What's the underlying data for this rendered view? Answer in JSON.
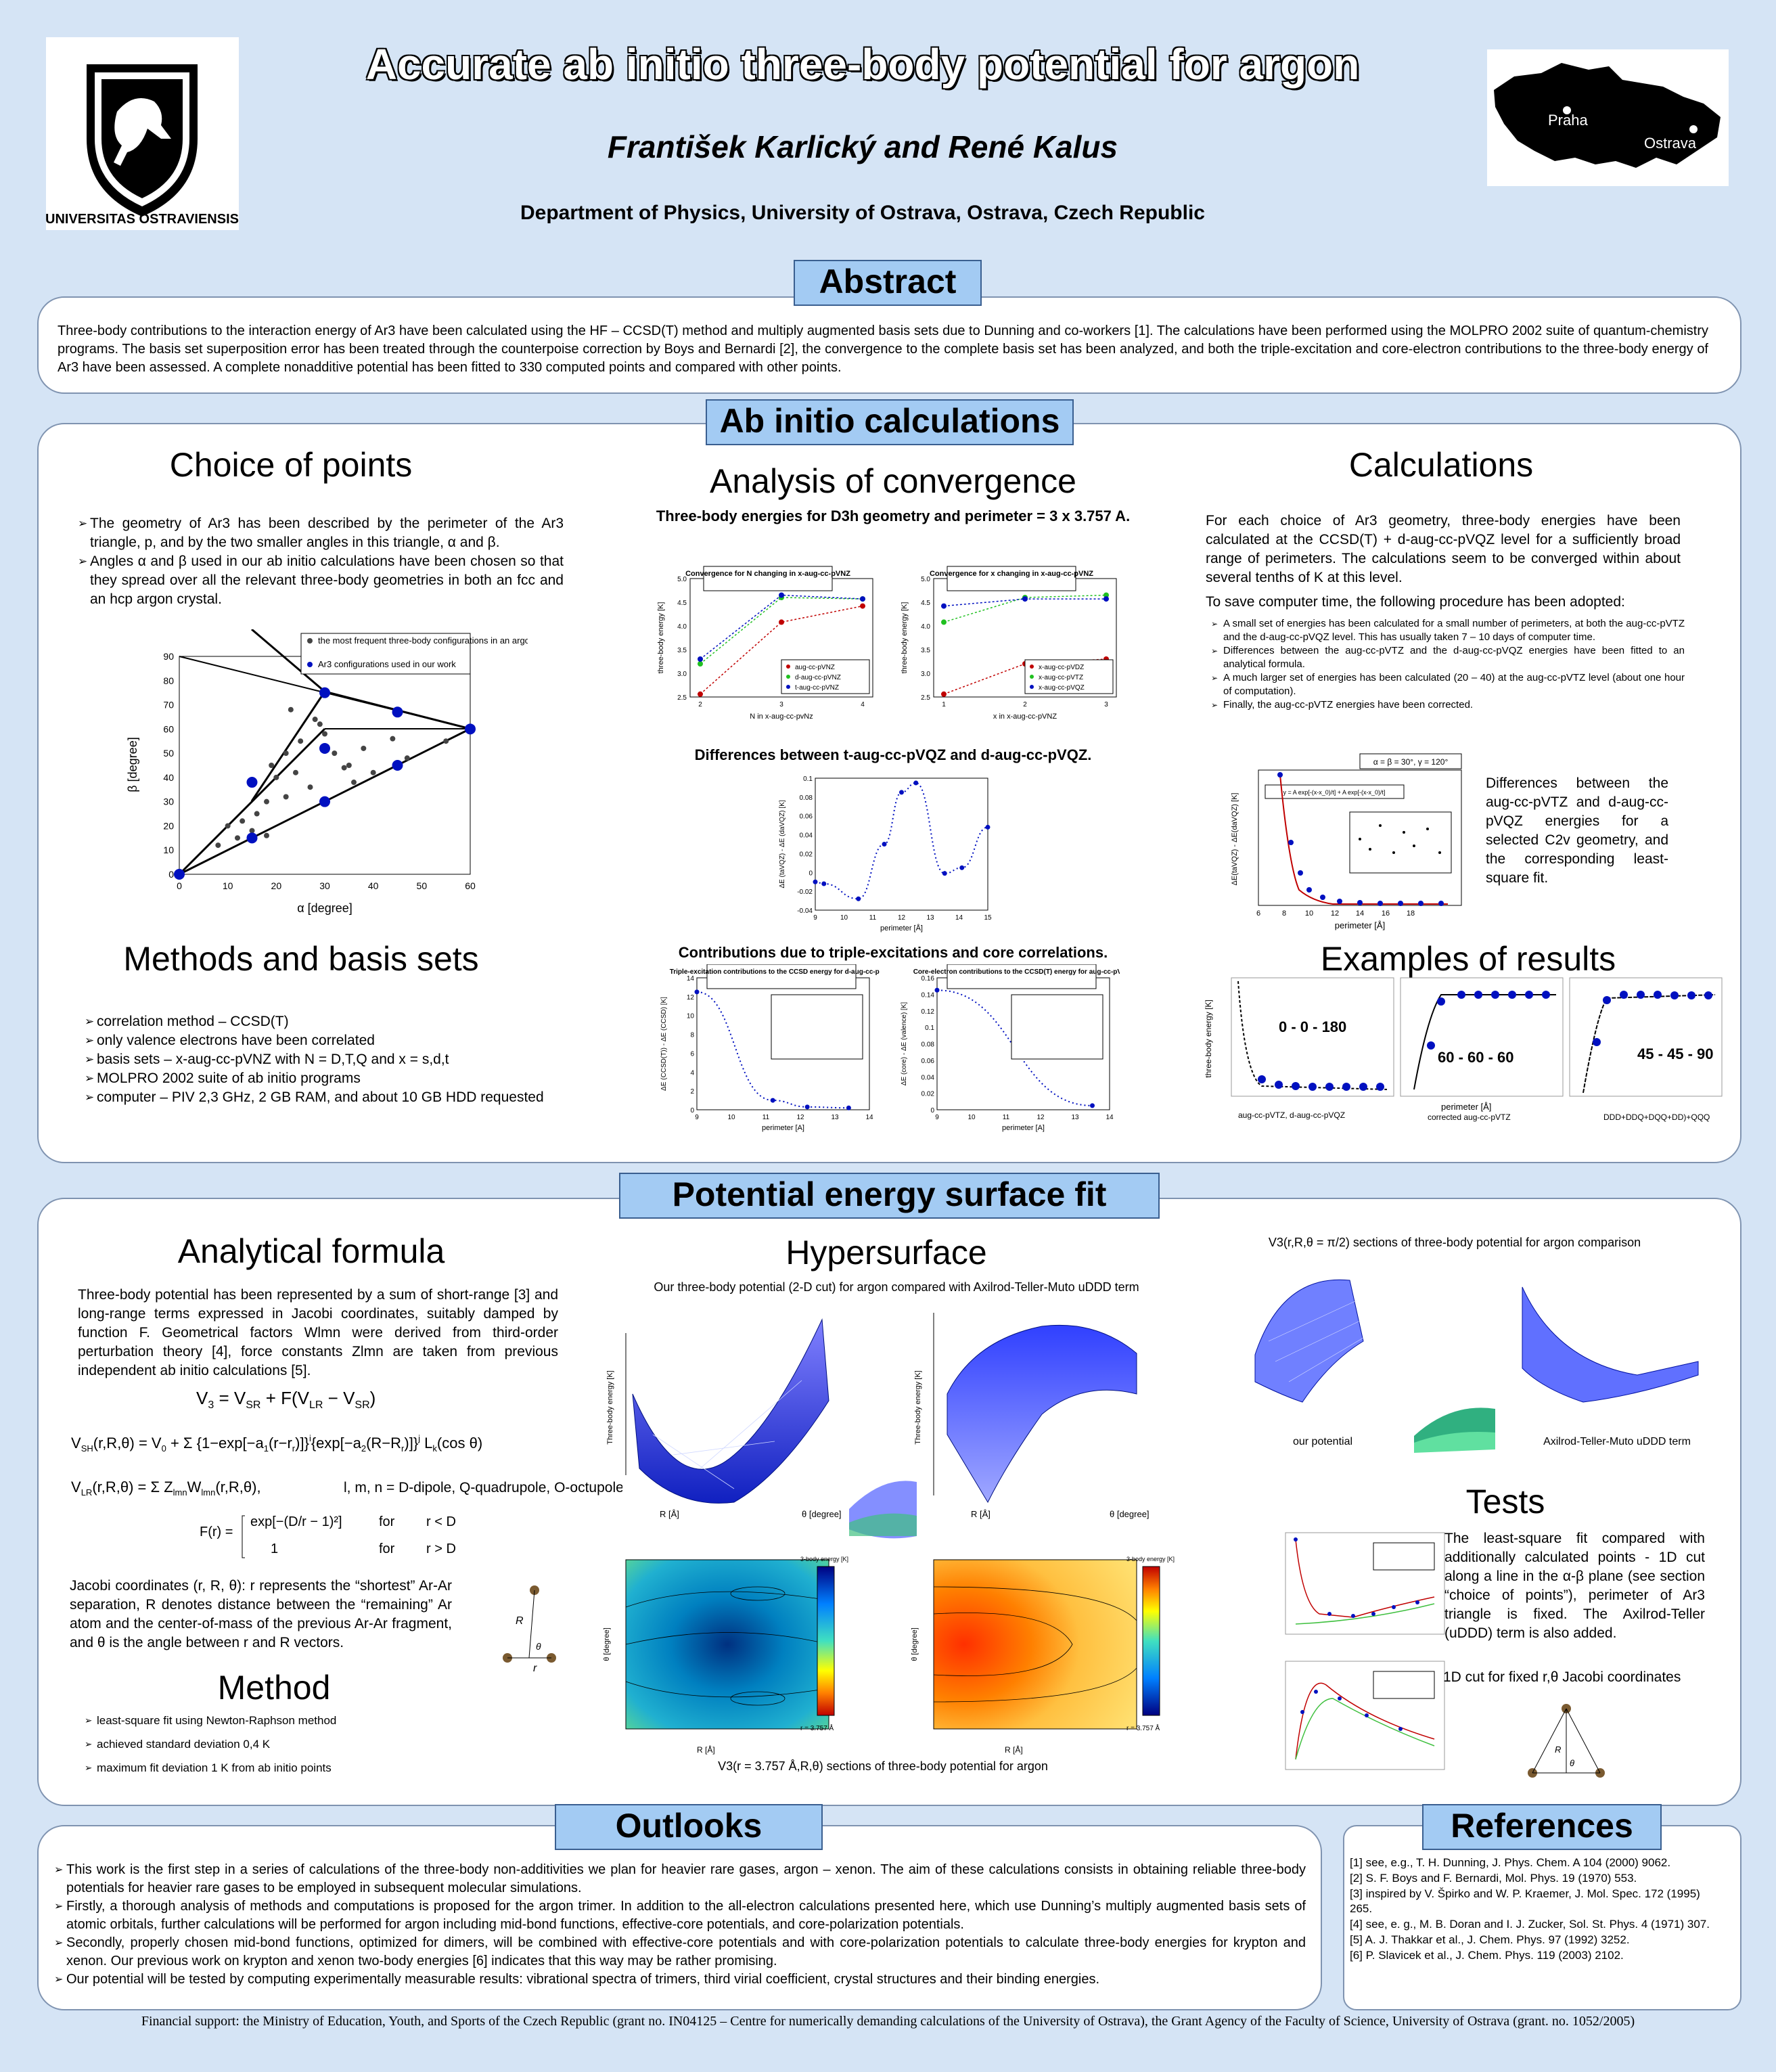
{
  "header": {
    "title": "Accurate ab initio three-body potential for argon",
    "authors": "František Karlický and René Kalus",
    "affiliation": "Department of Physics, University of Ostrava, Ostrava, Czech Republic",
    "logo_text": "UNIVERSITAS OSTRAVIENSIS",
    "map_city1": "Praha",
    "map_city2": "Ostrava"
  },
  "abstract": {
    "heading": "Abstract",
    "text": "Three-body contributions to the interaction energy of Ar3 have been calculated using the HF – CCSD(T) method and multiply augmented basis sets due to Dunning and co-workers [1]. The calculations have been performed using the MOLPRO 2002 suite of quantum-chemistry programs. The basis set superposition error has been treated through the counterpoise correction by Boys and Bernardi [2], the convergence to the complete basis set has been analyzed, and both the triple-excitation and core-electron contributions to the three-body energy of Ar3 have been assessed. A complete nonadditive potential has been fitted to 330 computed points and compared with other points."
  },
  "abinitio": {
    "heading": "Ab initio calculations",
    "choice": {
      "title": "Choice of points",
      "p1": "The geometry of Ar3 has been described by the perimeter of the Ar3 triangle, p, and by the two smaller angles in this triangle, α and β.",
      "p2": "Angles α and β used in our ab initio calculations have been chosen so that they spread over all the relevant three-body geometries in both an fcc and an hcp argon crystal.",
      "legend1": "the most frequent three-body configurations in an argon crystal",
      "legend2": "Ar3 configurations used in our work",
      "xlabel": "α [degree]",
      "ylabel": "β [degree]"
    },
    "methods": {
      "title": "Methods and basis sets",
      "items": [
        "correlation method – CCSD(T)",
        "only valence electrons have been correlated",
        "basis sets – x-aug-cc-pVNZ with N = D,T,Q and x = s,d,t",
        "MOLPRO 2002 suite of ab initio programs",
        "computer – PIV 2,3 GHz, 2 GB RAM, and about 10 GB HDD requested"
      ]
    },
    "convergence": {
      "title": "Analysis of convergence",
      "cap1": "Three-body energies for D3h geometry and perimeter = 3 x 3.757 A.",
      "box1": "Convergence for N changing in x-aug-cc-pVNZ",
      "box2": "Convergence for x changing in x-aug-cc-pVNZ",
      "leg1": [
        "aug-cc-pVNZ",
        "d-aug-cc-pVNZ",
        "t-aug-cc-pVNZ"
      ],
      "leg2": [
        "x-aug-cc-pVDZ",
        "x-aug-cc-pVTZ",
        "x-aug-cc-pVQZ"
      ],
      "xl1": "N in x-aug-cc-pvNz",
      "xl2": "x in x-aug-cc-pVNZ",
      "yl": "three-body energy [K]",
      "cap2": "Differences between t-aug-cc-pVQZ and d-aug-cc-pVQZ.",
      "yl2": "ΔE (taVQZ) - ΔE (daVQZ) [K]",
      "xl3": "perimeter [Å]",
      "cap3": "Contributions due to triple-excitations and core correlations.",
      "box3": "Triple-excitation contributions to the CCSD energy for d-aug-cc-pVQZ",
      "box4": "Core-electron contributions to the CCSD(T) energy for aug-cc-pVTZ",
      "yl3": "ΔE (CCSD(T)) - ΔE (CCSD) [K]",
      "yl4": "ΔE (core) - ΔE (valence) [K]",
      "xl4": "perimeter [A]"
    },
    "calculations": {
      "title": "Calculations",
      "p1": "For each choice of Ar3 geometry, three-body energies have been calculated at the CCSD(T) + d-aug-cc-pVQZ level for a sufficiently broad range of perimeters. The calculations seem to be converged within about several tenths of K at this level.",
      "p2": "To save computer time, the following procedure has been adopted:",
      "items": [
        "A small set of energies has been calculated for a small number of perimeters, at both the aug-cc-pVTZ and the d-aug-cc-pVQZ level. This has usually taken 7 – 10 days of computer time.",
        "Differences between the aug-cc-pVTZ and the d-aug-cc-pVQZ energies have been fitted to an analytical formula.",
        "A much larger set of energies has been calculated (20 – 40) at the aug-cc-pVTZ level (about one hour of computation).",
        "Finally, the aug-cc-pVTZ energies have been corrected."
      ],
      "angles": "α = β = 30°, γ = 120°",
      "fit": "y = A exp[-(x-x_0)/t] + A exp[-(x-x_0)/t]",
      "side": "Differences between the aug-cc-pVTZ and d-aug-cc-pVQZ energies for a selected C2v geometry, and the corresponding least-square fit.",
      "yl": "ΔE(taVQZ) - ΔE(daVQZ) [K]",
      "xl": "perimeter [Å]"
    },
    "examples": {
      "title": "Examples of results",
      "l1": "0 - 0 - 180",
      "l2": "60 - 60 - 60",
      "l3": "45 - 45 - 90",
      "leg1": "aug-cc-pVTZ,   d-aug-cc-pVQZ",
      "leg2": "corrected aug-cc-pVTZ",
      "leg3": "DDD+DDQ+DQQ+DD)+QQQ",
      "yl": "three-body energy [K]",
      "xl": "perimeter [Å]"
    }
  },
  "pes": {
    "heading": "Potential energy surface fit",
    "formula_title": "Analytical formula",
    "formula_text": "Three-body potential has been represented by a sum of short-range [3] and long-range terms expressed in Jacobi coordinates, suitably damped by function F. Geometrical factors Wlmn were derived from third-order perturbation theory [4], force constants Zlmn are taken from previous independent ab initio calculations [5].",
    "eq_lmn": "l, m, n = D-dipole, Q-quadrupole, O-octupole",
    "eq_for1": "for",
    "eq_for2": "for",
    "eq_c1": "r < D",
    "eq_c2": "r > D",
    "jacobi_text": "Jacobi coordinates (r, R, θ): r represents the “shortest” Ar-Ar separation, R denotes distance between the “remaining” Ar atom and the center-of-mass of the previous Ar-Ar fragment, and θ is the angle between r and R vectors.",
    "method_title": "Method",
    "method_items": [
      "least-square fit using Newton-Raphson method",
      "achieved standard deviation 0,4 K",
      "maximum fit deviation 1 K from ab initio points"
    ],
    "hyper_title": "Hypersurface",
    "hyper_cap": "Our three-body potential (2-D cut) for argon compared with Axilrod-Teller-Muto uDDD term",
    "hyper_cap2": "V3(r = 3.757 Å,R,θ) sections of three-body potential for argon",
    "surf_xl": "R [Å]",
    "surf_yl": "θ [degree]",
    "surf_zl": "Three-body energy [K]",
    "cont_yl": "θ [degree]",
    "cont_xl": "R [Å]",
    "cont_r": "r = 3.757 Å",
    "cbar_label": "3-body energy [K]",
    "v3_cap": "V3(r,R,θ = π/2) sections of three-body potential for argon comparison",
    "our_pot": "our potential",
    "atm": "Axilrod-Teller-Muto uDDD term",
    "tests_title": "Tests",
    "tests_text": "The least-square fit compared with additionally calculated points - 1D cut along a line in the α-β plane (see section “choice of points”), perimeter of Ar3 triangle is fixed. The Axilrod-Teller (uDDD) term is also added.",
    "tests_cut": "1D cut for fixed r,θ Jacobi coordinates"
  },
  "outlooks": {
    "heading": "Outlooks",
    "items": [
      "This work is the first step in a series of calculations of the three-body non-additivities we plan for heavier rare gases, argon – xenon. The aim of these calculations consists in obtaining reliable three-body potentials for heavier rare gases to be employed in subsequent molecular simulations.",
      "Firstly, a thorough analysis of methods and computations is proposed for the argon trimer. In addition to the all-electron calculations presented here, which use Dunning’s multiply augmented basis sets of atomic orbitals, further calculations will be performed for argon including mid-bond functions, effective-core potentials, and core-polarization potentials.",
      "Secondly, properly chosen mid-bond functions, optimized for dimers, will be combined with effective-core potentials and with core-polarization potentials to calculate three-body energies for krypton and xenon. Our previous work on krypton and xenon two-body energies [6] indicates that this way may be rather promising.",
      "Our potential will be tested by computing experimentally measurable results: vibrational spectra of trimers, third virial coefficient, crystal structures and their binding energies."
    ]
  },
  "references": {
    "heading": "References",
    "items": [
      "[1]  see, e.g., T. H. Dunning, J. Phys. Chem. A 104 (2000) 9062.",
      "[2]  S. F. Boys and F. Bernardi, Mol. Phys. 19 (1970) 553.",
      "[3]  inspired by V. Špirko and W. P. Kraemer, J. Mol. Spec. 172 (1995) 265.",
      "[4]  see, e. g., M. B. Doran and I. J. Zucker, Sol. St. Phys. 4 (1971) 307.",
      "[5]  A. J. Thakkar et al., J. Chem. Phys. 97 (1992) 3252.",
      "[6]  P. Slavicek et al., J. Chem. Phys. 119 (2003) 2102."
    ]
  },
  "footer": "Financial support: the Ministry of Education, Youth, and Sports of the Czech Republic (grant no. IN04125 – Centre for numerically demanding calculations of the University of Ostrava), the Grant Agency of the Faculty of Science, University of Ostrava (grant. no. 1052/2005)",
  "chart_data": [
    {
      "type": "scatter",
      "xlabel": "α [degree]",
      "ylabel": "β [degree]",
      "xlim": [
        0,
        60
      ],
      "ylim": [
        0,
        90
      ],
      "xticks": [
        0,
        10,
        20,
        30,
        40,
        50,
        60
      ],
      "yticks": [
        0,
        10,
        20,
        30,
        40,
        50,
        60,
        70,
        80,
        90
      ],
      "series": [
        {
          "name": "the most frequent three-body configurations in an argon crystal",
          "points": [
            [
              8,
              12
            ],
            [
              10,
              20
            ],
            [
              12,
              15
            ],
            [
              13,
              22
            ],
            [
              15,
              18
            ],
            [
              16,
              25
            ],
            [
              18,
              30
            ],
            [
              19,
              45
            ],
            [
              20,
              40
            ],
            [
              22,
              32
            ],
            [
              22,
              50
            ],
            [
              23,
              68
            ],
            [
              24,
              42
            ],
            [
              25,
              55
            ],
            [
              27,
              36
            ],
            [
              28,
              64
            ],
            [
              29,
              62
            ],
            [
              30,
              58
            ],
            [
              32,
              50
            ],
            [
              34,
              44
            ],
            [
              35,
              45
            ],
            [
              36,
              38
            ],
            [
              38,
              52
            ],
            [
              40,
              42
            ],
            [
              44,
              56
            ],
            [
              47,
              48
            ],
            [
              55,
              55
            ],
            [
              18,
              16
            ]
          ]
        },
        {
          "name": "Ar3 configurations used in our work",
          "points": [
            [
              0,
              0
            ],
            [
              15,
              15
            ],
            [
              15,
              38
            ],
            [
              30,
              30
            ],
            [
              30,
              52
            ],
            [
              30,
              75
            ],
            [
              45,
              45
            ],
            [
              45,
              67
            ],
            [
              60,
              60
            ]
          ]
        }
      ]
    },
    {
      "type": "line",
      "title": "Convergence for N changing in x-aug-cc-pVNZ",
      "xlabel": "N in x-aug-cc-pvNz",
      "ylabel": "three-body energy [K]",
      "x": [
        2,
        3,
        4
      ],
      "xticks_labels": [
        "2",
        "3",
        "4"
      ],
      "ylim": [
        2.5,
        5.0
      ],
      "series": [
        {
          "name": "aug-cc-pVNZ",
          "values": [
            2.56,
            4.08,
            4.42
          ]
        },
        {
          "name": "d-aug-cc-pVNZ",
          "values": [
            3.2,
            4.6,
            4.57
          ]
        },
        {
          "name": "t-aug-cc-pVNZ",
          "values": [
            3.3,
            4.65,
            4.57
          ]
        }
      ]
    },
    {
      "type": "line",
      "title": "Convergence for x changing in x-aug-cc-pVNZ",
      "xlabel": "x in x-aug-cc-pVNZ",
      "ylabel": "three-body energy [K]",
      "x": [
        1,
        2,
        3
      ],
      "ylim": [
        2.5,
        5.0
      ],
      "series": [
        {
          "name": "x-aug-cc-pVDZ",
          "values": [
            2.56,
            3.2,
            3.3
          ]
        },
        {
          "name": "x-aug-cc-pVTZ",
          "values": [
            4.08,
            4.6,
            4.65
          ]
        },
        {
          "name": "x-aug-cc-pVQZ",
          "values": [
            4.42,
            4.57,
            4.57
          ]
        }
      ]
    },
    {
      "type": "line",
      "title": "Differences between t-aug-cc-pVQZ and d-aug-cc-pVQZ.",
      "xlabel": "perimeter [Å]",
      "ylabel": "ΔE (taVQZ) - ΔE (daVQZ) [K]",
      "xlim": [
        9,
        15
      ],
      "ylim": [
        -0.04,
        0.1
      ],
      "x": [
        9,
        9.3,
        10.5,
        11.4,
        12,
        12.5,
        13.5,
        14.1,
        15
      ],
      "values": [
        -0.01,
        -0.012,
        -0.028,
        0.03,
        0.085,
        0.095,
        -0.001,
        0.005,
        0.048
      ]
    },
    {
      "type": "line",
      "title": "Triple-excitation contributions to the CCSD energy for d-aug-cc-pVQZ",
      "xlabel": "perimeter [A]",
      "ylabel": "ΔE (CCSD(T)) - ΔE (CCSD) [K]",
      "xlim": [
        9,
        14
      ],
      "ylim": [
        0,
        14
      ],
      "x": [
        9,
        11.2,
        12.2,
        13.4
      ],
      "values": [
        12.5,
        1.0,
        0.3,
        0.2
      ]
    },
    {
      "type": "line",
      "title": "Core-electron contributions to the CCSD(T) energy for aug-cc-pVTZ",
      "xlabel": "perimeter [A]",
      "ylabel": "ΔE (core) - ΔE (valence) [K]",
      "xlim": [
        9,
        14
      ],
      "ylim": [
        0,
        0.16
      ],
      "x": [
        9,
        13.5
      ],
      "values": [
        0.145,
        0.005
      ]
    }
  ]
}
